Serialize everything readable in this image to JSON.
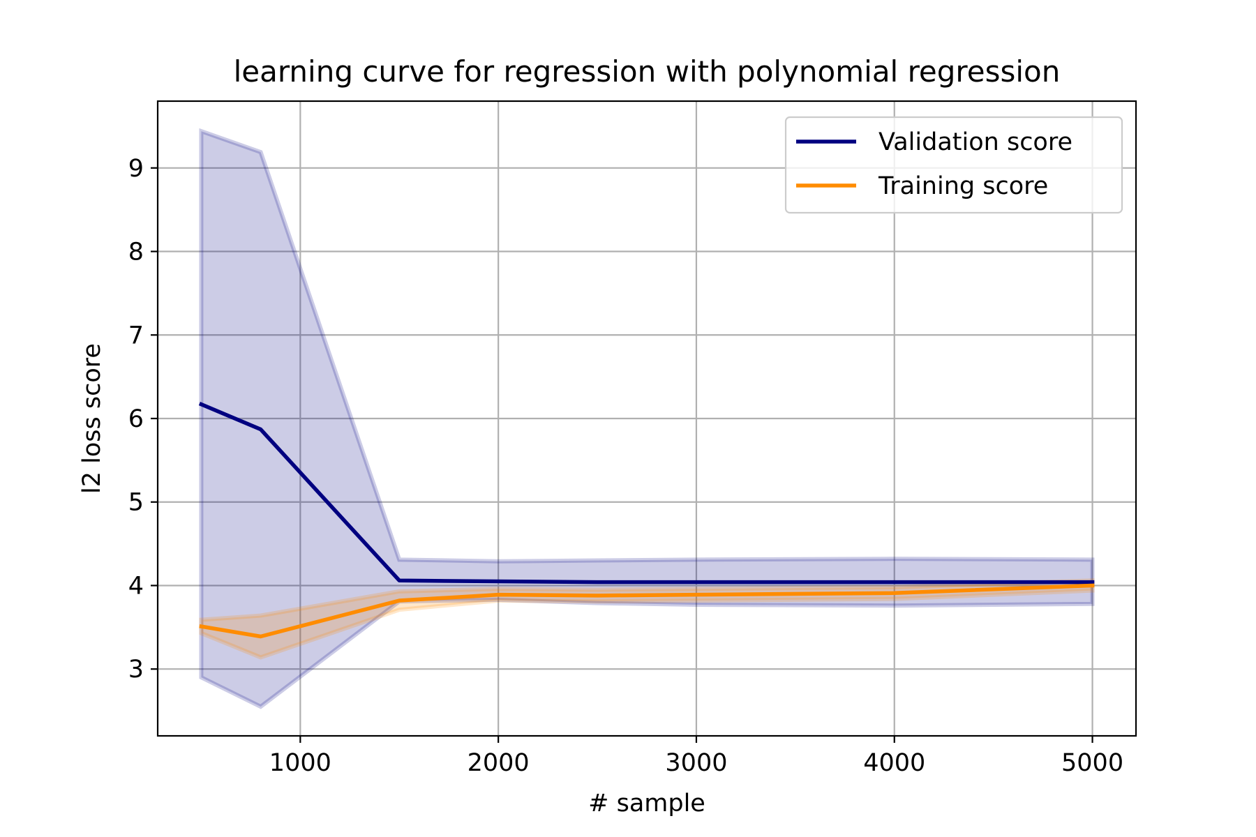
{
  "chart_data": {
    "type": "line",
    "title": "learning curve for regression with polynomial regression",
    "xlabel": "# sample",
    "ylabel": "l2 loss score",
    "xlim": [
      280,
      5220
    ],
    "ylim": [
      2.2,
      9.8
    ],
    "xticks": [
      1000,
      2000,
      3000,
      4000,
      5000
    ],
    "yticks": [
      3,
      4,
      5,
      6,
      7,
      8,
      9
    ],
    "grid": true,
    "legend_position": "upper right",
    "x": [
      500,
      800,
      1500,
      2000,
      2500,
      3000,
      4000,
      5000
    ],
    "series": [
      {
        "name": "Validation score",
        "color": "#000080",
        "band_color": "#000080",
        "values": [
          6.17,
          5.87,
          4.06,
          4.05,
          4.04,
          4.04,
          4.04,
          4.04
        ],
        "upper": [
          9.44,
          9.19,
          4.31,
          4.29,
          4.3,
          4.31,
          4.32,
          4.31
        ],
        "lower": [
          2.9,
          2.55,
          3.81,
          3.83,
          3.79,
          3.77,
          3.76,
          3.78
        ]
      },
      {
        "name": "Training score",
        "color": "#ff8c00",
        "band_color": "#ff8c00",
        "values": [
          3.51,
          3.39,
          3.82,
          3.89,
          3.88,
          3.89,
          3.91,
          4.0
        ],
        "upper": [
          3.59,
          3.64,
          3.93,
          3.96,
          3.95,
          3.96,
          3.98,
          4.06
        ],
        "lower": [
          3.43,
          3.14,
          3.71,
          3.82,
          3.81,
          3.82,
          3.84,
          3.94
        ]
      }
    ]
  }
}
